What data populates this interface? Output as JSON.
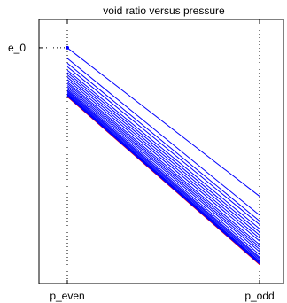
{
  "chart_data": {
    "type": "line",
    "title": "void ratio versus pressure",
    "xlabel": "",
    "ylabel": "",
    "x_categories": [
      "p_even",
      "p_odd"
    ],
    "y_tick_labels": [
      "e_0"
    ],
    "y_reference_value": 1.0,
    "ylim": [
      0,
      1.12
    ],
    "grid": false,
    "legend": "none",
    "series_color": "#0000ff",
    "highlight_color": "#ff0000",
    "axis_color": "#000000",
    "reference_line_style": "dotted",
    "start_point_marker": "dot",
    "series": [
      {
        "values": [
          1.0,
          0.37
        ]
      },
      {
        "values": [
          0.955,
          0.29
        ]
      },
      {
        "values": [
          0.935,
          0.265
        ]
      },
      {
        "values": [
          0.92,
          0.25
        ]
      },
      {
        "values": [
          0.905,
          0.232
        ]
      },
      {
        "values": [
          0.895,
          0.218
        ]
      },
      {
        "values": [
          0.885,
          0.205
        ]
      },
      {
        "values": [
          0.875,
          0.192
        ]
      },
      {
        "values": [
          0.865,
          0.18
        ]
      },
      {
        "values": [
          0.855,
          0.165
        ]
      },
      {
        "values": [
          0.848,
          0.155
        ]
      },
      {
        "values": [
          0.84,
          0.145
        ]
      },
      {
        "values": [
          0.833,
          0.135
        ]
      },
      {
        "values": [
          0.826,
          0.122
        ]
      },
      {
        "values": [
          0.82,
          0.112
        ]
      },
      {
        "values": [
          0.815,
          0.106
        ]
      },
      {
        "values": [
          0.81,
          0.1
        ]
      },
      {
        "values": [
          0.805,
          0.094
        ]
      },
      {
        "values": [
          0.801,
          0.09
        ]
      },
      {
        "values": [
          0.798,
          0.086
        ]
      }
    ],
    "highlight_series_index": 19
  }
}
